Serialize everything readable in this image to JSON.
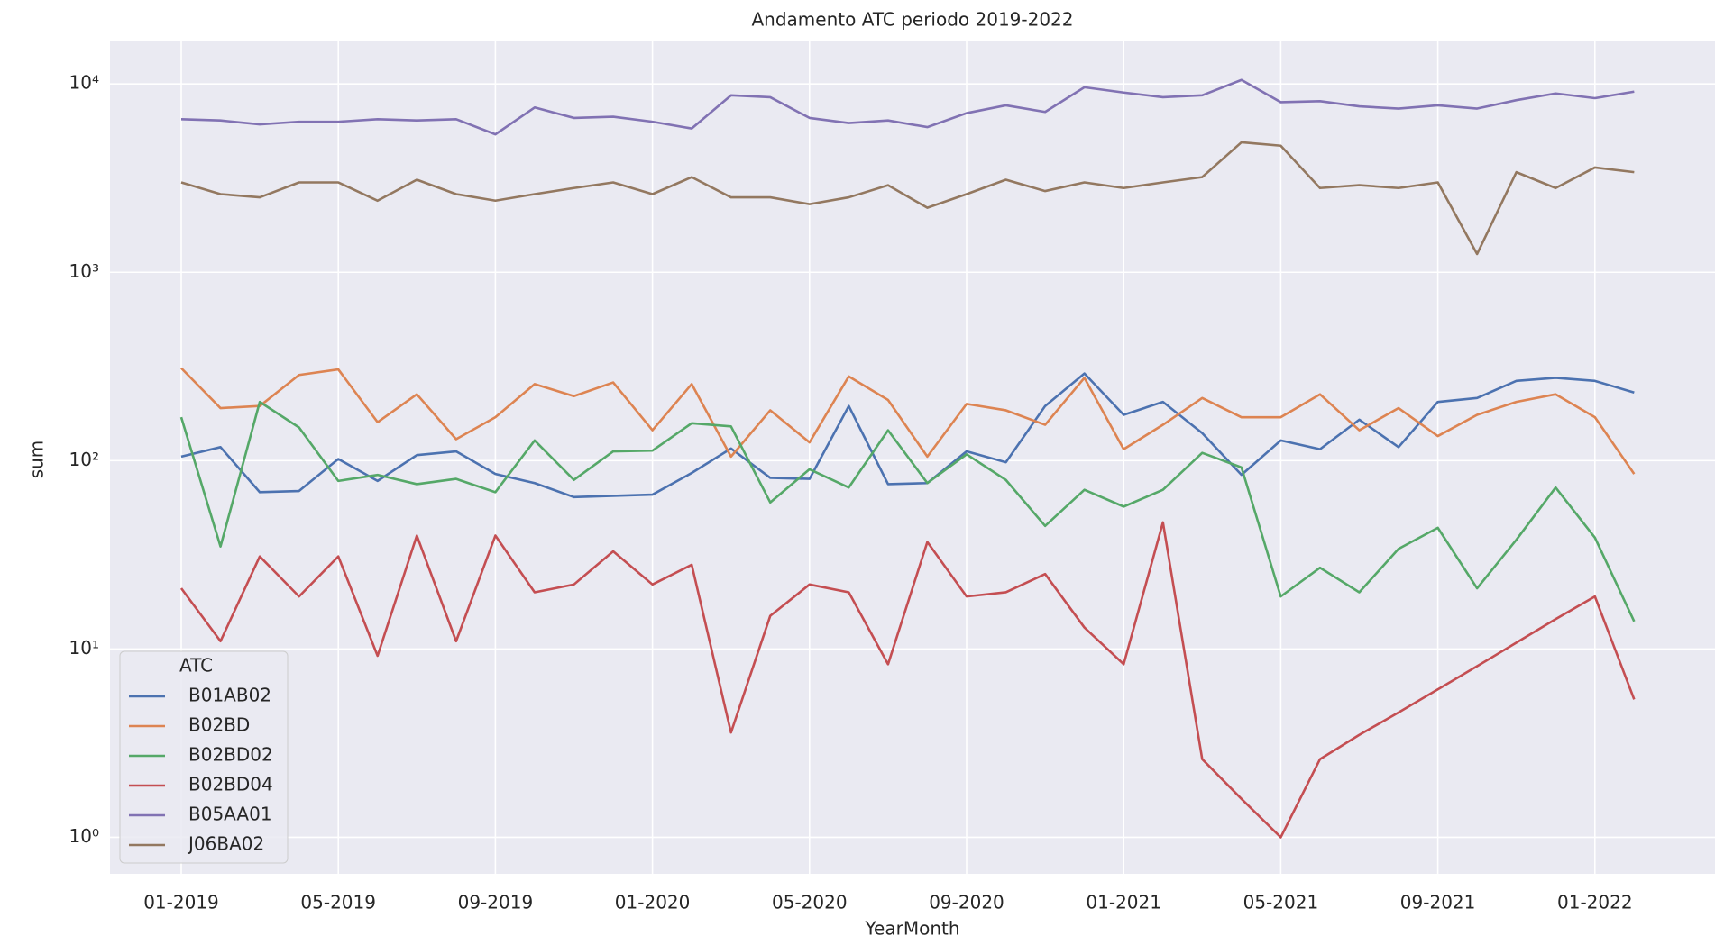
{
  "chart_data": {
    "type": "line",
    "title": "Andamento ATC periodo 2019-2022",
    "xlabel": "YearMonth",
    "ylabel": "sum",
    "log_y": true,
    "grid": true,
    "legend_title": "ATC",
    "legend_position": "lower left",
    "categories": [
      "01-2019",
      null,
      null,
      null,
      "05-2019",
      null,
      null,
      null,
      "09-2019",
      null,
      null,
      null,
      "01-2020",
      null,
      null,
      null,
      "05-2020",
      null,
      null,
      null,
      "09-2020",
      null,
      null,
      null,
      "01-2021",
      null,
      null,
      null,
      "05-2021",
      null,
      null,
      null,
      "09-2021",
      null,
      null,
      null,
      "01-2022",
      null
    ],
    "ylim": [
      0.64,
      17000
    ],
    "yticks": [
      {
        "value": 1,
        "label": "10⁰"
      },
      {
        "value": 10,
        "label": "10¹"
      },
      {
        "value": 100,
        "label": "10²"
      },
      {
        "value": 1000,
        "label": "10³"
      },
      {
        "value": 10000,
        "label": "10⁴"
      }
    ],
    "series": [
      {
        "name": "B01AB02",
        "color": "#4c72b0",
        "values": [
          105,
          118,
          68,
          69,
          102,
          78,
          107,
          112,
          85,
          76,
          64,
          65,
          66,
          86,
          116,
          81,
          80,
          195,
          75,
          76,
          112,
          98,
          195,
          290,
          175,
          205,
          140,
          84,
          128,
          115,
          165,
          118,
          205,
          215,
          265,
          275,
          265,
          230
        ]
      },
      {
        "name": "B02BD",
        "color": "#dd8452",
        "values": [
          310,
          190,
          195,
          285,
          305,
          160,
          225,
          130,
          170,
          255,
          220,
          260,
          145,
          255,
          105,
          185,
          125,
          280,
          210,
          105,
          200,
          185,
          155,
          275,
          115,
          155,
          215,
          170,
          170,
          225,
          145,
          190,
          135,
          175,
          205,
          225,
          170,
          85
        ]
      },
      {
        "name": "B02BD02",
        "color": "#55a868",
        "values": [
          170,
          35,
          205,
          150,
          78,
          84,
          75,
          80,
          68,
          128,
          79,
          112,
          113,
          158,
          152,
          60,
          90,
          72,
          145,
          76,
          108,
          79,
          45,
          70,
          57,
          70,
          110,
          92,
          19,
          27,
          20,
          34,
          44,
          21,
          38,
          72,
          39,
          14
        ]
      },
      {
        "name": "B02BD04",
        "color": "#c44e52",
        "values": [
          21,
          11,
          31,
          19,
          31,
          9.2,
          40,
          11,
          40,
          20,
          22,
          33,
          22,
          28,
          3.6,
          15,
          22,
          20,
          8.3,
          37,
          19,
          20,
          25,
          13,
          8.3,
          47,
          2.6,
          1.6,
          1.0,
          2.6,
          3.5,
          4.6,
          6.1,
          8.1,
          10.8,
          14.4,
          19,
          5.4
        ]
      },
      {
        "name": "B05AA01",
        "color": "#8172b3",
        "values": [
          6500,
          6400,
          6100,
          6300,
          6300,
          6500,
          6400,
          6500,
          5400,
          7500,
          6600,
          6700,
          6300,
          5800,
          8700,
          8500,
          6600,
          6200,
          6400,
          5900,
          7000,
          7700,
          7100,
          9600,
          9000,
          8500,
          8700,
          10500,
          8000,
          8100,
          7600,
          7400,
          7700,
          7400,
          8200,
          8900,
          8400,
          9100
        ]
      },
      {
        "name": "J06BA02",
        "color": "#937860",
        "values": [
          3000,
          2600,
          2500,
          3000,
          3000,
          2400,
          3100,
          2600,
          2400,
          2600,
          2800,
          3000,
          2600,
          3200,
          2500,
          2500,
          2300,
          2500,
          2900,
          2200,
          2600,
          3100,
          2700,
          3000,
          2800,
          3000,
          3200,
          4900,
          4700,
          2800,
          2900,
          2800,
          3000,
          1250,
          3400,
          2800,
          3600,
          3400
        ]
      }
    ]
  }
}
